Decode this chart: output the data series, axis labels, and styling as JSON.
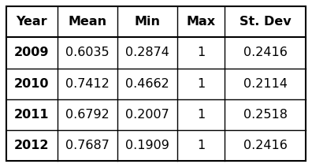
{
  "headers": [
    "Year",
    "Mean",
    "Min",
    "Max",
    "St. Dev"
  ],
  "rows": [
    [
      "2009",
      "0.6035",
      "0.2874",
      "1",
      "0.2416"
    ],
    [
      "2010",
      "0.7412",
      "0.4662",
      "1",
      "0.2114"
    ],
    [
      "2011",
      "0.6792",
      "0.2007",
      "1",
      "0.2518"
    ],
    [
      "2012",
      "0.7687",
      "0.1909",
      "1",
      "0.2416"
    ]
  ],
  "background_color": "#ffffff",
  "line_color": "#000000",
  "text_color": "#000000",
  "font_size": 11.5,
  "fig_width": 3.96,
  "fig_height": 2.08,
  "dpi": 100
}
